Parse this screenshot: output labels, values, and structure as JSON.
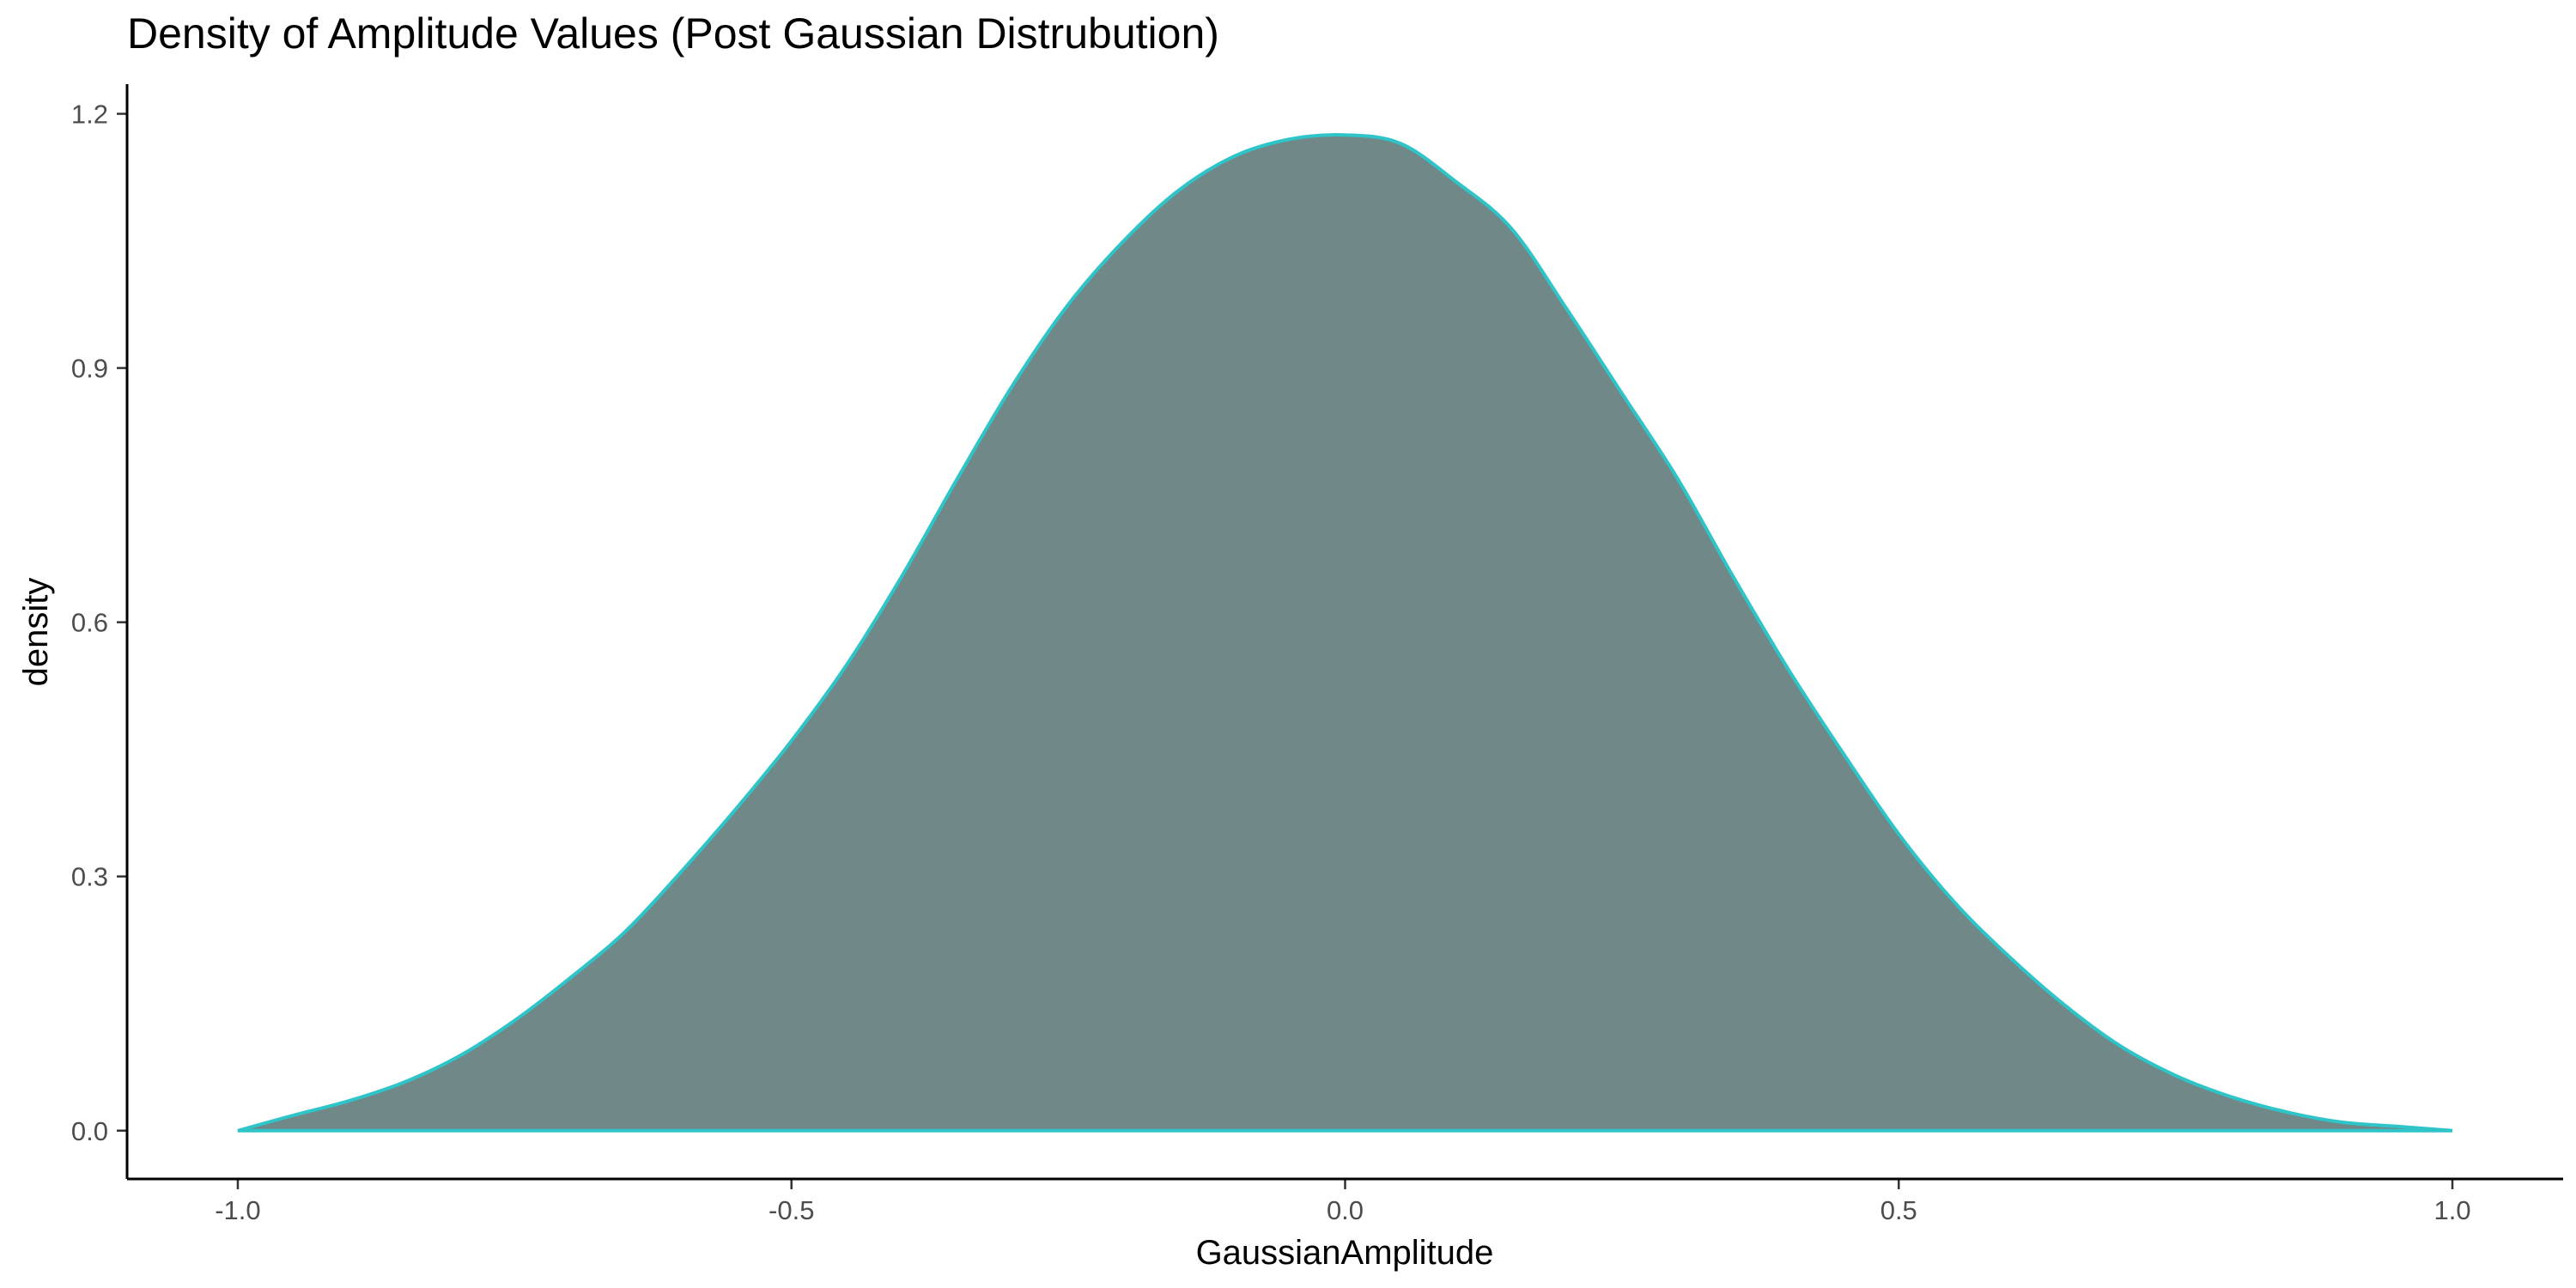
{
  "chart_data": {
    "type": "area",
    "title": "Density of Amplitude Values (Post Gaussian Distrubution)",
    "xlabel": "GaussianAmplitude",
    "ylabel": "density",
    "xlim": [
      -1.1,
      1.1
    ],
    "ylim": [
      -0.057,
      1.235
    ],
    "x_ticks": [
      -1.0,
      -0.5,
      0.0,
      0.5,
      1.0
    ],
    "x_tick_labels": [
      "-1.0",
      "-0.5",
      "0.0",
      "0.5",
      "1.0"
    ],
    "y_ticks": [
      0.0,
      0.3,
      0.6,
      0.9,
      1.2
    ],
    "y_tick_labels": [
      "0.0",
      "0.3",
      "0.6",
      "0.9",
      "1.2"
    ],
    "grid": false,
    "fill_color": "#708888",
    "line_color": "#2ec4c8",
    "series": [
      {
        "x": [
          -1.0,
          -0.95,
          -0.9,
          -0.85,
          -0.8,
          -0.75,
          -0.7,
          -0.65,
          -0.6,
          -0.55,
          -0.5,
          -0.45,
          -0.4,
          -0.35,
          -0.3,
          -0.25,
          -0.2,
          -0.15,
          -0.1,
          -0.05,
          0.0,
          0.05,
          0.1,
          0.15,
          0.2,
          0.25,
          0.3,
          0.35,
          0.4,
          0.45,
          0.5,
          0.55,
          0.6,
          0.65,
          0.7,
          0.75,
          0.8,
          0.85,
          0.9,
          0.95,
          1.0
        ],
        "y": [
          0.0,
          0.018,
          0.035,
          0.057,
          0.088,
          0.13,
          0.18,
          0.235,
          0.305,
          0.38,
          0.46,
          0.55,
          0.655,
          0.77,
          0.88,
          0.975,
          1.05,
          1.11,
          1.15,
          1.17,
          1.175,
          1.165,
          1.12,
          1.065,
          0.97,
          0.87,
          0.77,
          0.655,
          0.545,
          0.445,
          0.35,
          0.27,
          0.205,
          0.148,
          0.1,
          0.065,
          0.04,
          0.022,
          0.01,
          0.005,
          0.0
        ]
      }
    ]
  }
}
